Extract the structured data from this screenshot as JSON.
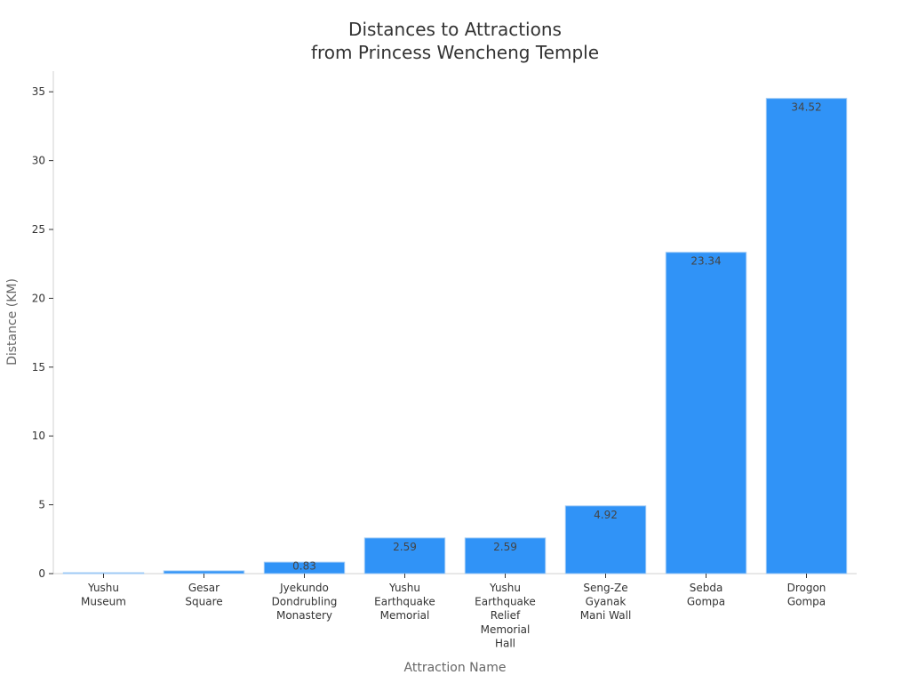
{
  "chart_data": {
    "type": "bar",
    "title": "Distances to Attractions\nfrom Princess Wencheng Temple",
    "xlabel": "Attraction Name",
    "ylabel": "Distance (KM)",
    "ylim": [
      0,
      36.5
    ],
    "yticks": [
      0,
      5,
      10,
      15,
      20,
      25,
      30,
      35
    ],
    "grid": false,
    "categories": [
      "Yushu Museum",
      "Gesar Square",
      "Jyekundo Dondrubling Monastery",
      "Yushu Earthquake Memorial",
      "Yushu Earthquake Relief Memorial Hall",
      "Seng-Ze Gyanak Mani Wall",
      "Sebda Gompa",
      "Drogon Gompa"
    ],
    "category_lines": [
      [
        "Yushu",
        "Museum"
      ],
      [
        "Gesar",
        "Square"
      ],
      [
        "Jyekundo",
        "Dondrubling",
        "Monastery"
      ],
      [
        "Yushu",
        "Earthquake",
        "Memorial"
      ],
      [
        "Yushu",
        "Earthquake",
        "Relief",
        "Memorial",
        "Hall"
      ],
      [
        "Seng-Ze",
        "Gyanak",
        "Mani Wall"
      ],
      [
        "Sebda",
        "Gompa"
      ],
      [
        "Drogon",
        "Gompa"
      ]
    ],
    "values": [
      0.05,
      0.2,
      0.83,
      2.59,
      2.59,
      4.92,
      23.34,
      34.52
    ],
    "labels": [
      "",
      "",
      "0.83",
      "2.59",
      "2.59",
      "4.92",
      "23.34",
      "34.52"
    ],
    "bar_color": "#3093f7"
  }
}
